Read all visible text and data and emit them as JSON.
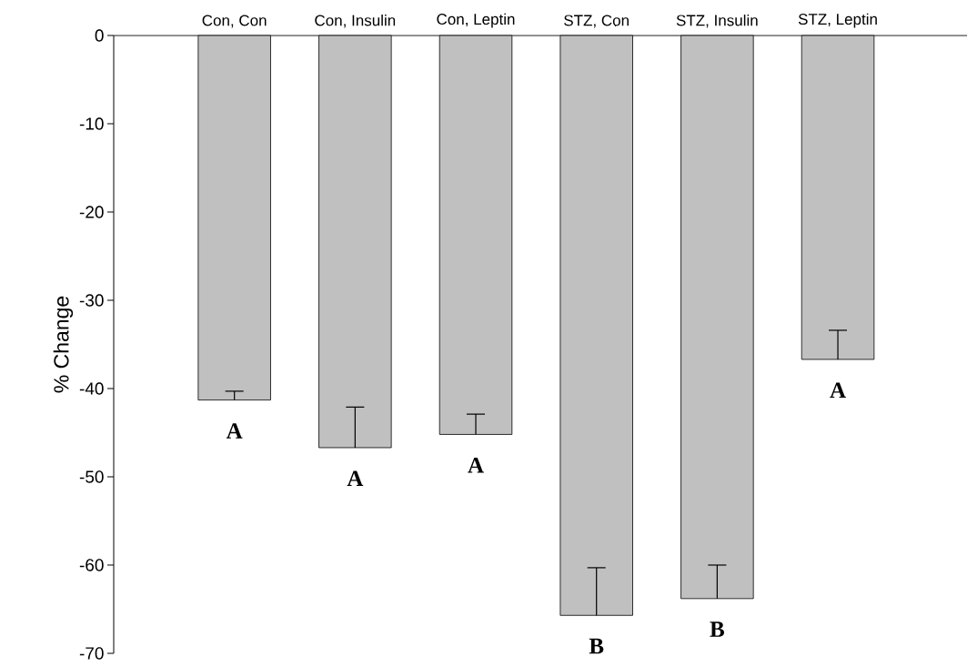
{
  "chart_data": {
    "type": "bar",
    "ylabel": "% Change",
    "categories": [
      "Con, Con",
      "Con, Insulin",
      "Con, Leptin",
      "STZ, Con",
      "STZ, Insulin",
      "STZ, Leptin"
    ],
    "values": [
      -41.3,
      -46.7,
      -45.2,
      -65.7,
      -63.8,
      -36.7
    ],
    "errors": [
      [
        -41.3,
        -40.3
      ],
      [
        -46.7,
        -42.1
      ],
      [
        -45.2,
        -42.9
      ],
      [
        -65.7,
        -60.3
      ],
      [
        -63.8,
        -60.0
      ],
      [
        -36.7,
        -33.4
      ]
    ],
    "color": "#c0c0c0",
    "ylim": [
      -70,
      0
    ],
    "yticks": [
      0,
      -10,
      -20,
      -30,
      -40,
      -50,
      -60,
      -70
    ],
    "grid": false,
    "annotations": [
      "A",
      "A",
      "A",
      "B",
      "B",
      "A"
    ]
  }
}
